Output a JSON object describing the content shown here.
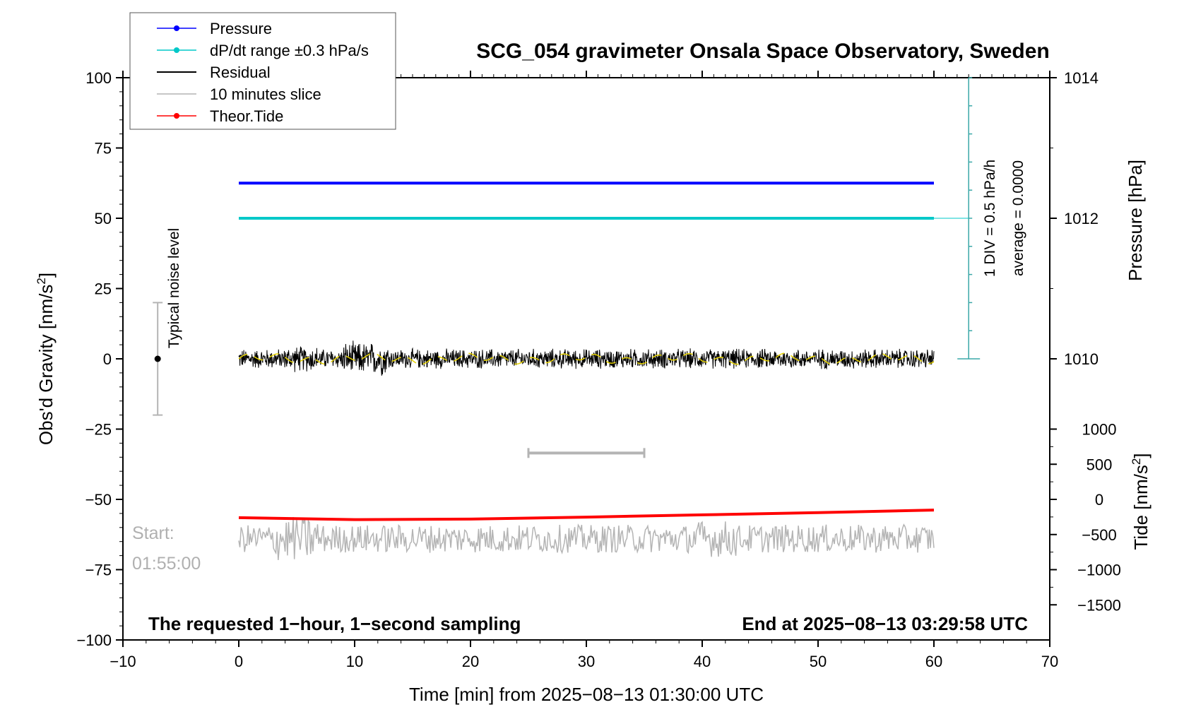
{
  "chart_data": {
    "type": "line",
    "title": "SCG_054 gravimeter Onsala Space Observatory, Sweden",
    "xlabel": "Time [min] from 2025−08−13 01:30:00 UTC",
    "ylabel_main": "Obs'd Gravity [nm/s",
    "ylabel_main_sup": "2",
    "ylabel_main_tail": "]",
    "ylabel_pressure": "Pressure [hPa]",
    "ylabel_tide": "Tide [nm/s",
    "ylabel_tide_sup": "2",
    "ylabel_tide_tail": "]",
    "xlim": [
      -10,
      70
    ],
    "ylim": [
      -100,
      100
    ],
    "xticks": [
      -10,
      0,
      10,
      20,
      30,
      40,
      50,
      60,
      70
    ],
    "xtick_labels": [
      "−10",
      "0",
      "10",
      "20",
      "30",
      "40",
      "50",
      "60",
      "70"
    ],
    "yticks": [
      -100,
      -75,
      -50,
      -25,
      0,
      25,
      50,
      75,
      100
    ],
    "ytick_labels": [
      "−100",
      "−75",
      "−50",
      "−25",
      "0",
      "25",
      "50",
      "75",
      "100"
    ],
    "pressure_axis": {
      "ticks": [
        1010,
        1012,
        1014
      ],
      "tick_labels": [
        "1010",
        "1012",
        "1014"
      ],
      "gravity_at_1012": 50,
      "gravity_per_hPa": 25
    },
    "tide_axis": {
      "ticks": [
        -1500,
        -1000,
        -500,
        0,
        500,
        1000
      ],
      "tick_labels": [
        "−1500",
        "−1000",
        "−500",
        "0",
        "500",
        "1000"
      ],
      "gravity_at_0": -50,
      "gravity_per_unit": 0.025
    },
    "legend": {
      "position": "top-left",
      "entries": [
        {
          "name": "Pressure",
          "color": "#0000ff",
          "marker": true
        },
        {
          "name": "dP/dt range ±0.3 hPa/s",
          "color": "#00c8c8",
          "marker": true
        },
        {
          "name": "Residual",
          "color": "#000000",
          "marker": false
        },
        {
          "name": "10 minutes slice",
          "color": "#b4b4b4",
          "marker": false
        },
        {
          "name": "Theor.Tide",
          "color": "#ff0000",
          "marker": true
        }
      ]
    },
    "series": [
      {
        "name": "Pressure",
        "color": "#0000ff",
        "x": [
          0,
          60
        ],
        "y": [
          62.5,
          62.5
        ]
      },
      {
        "name": "dP/dt range ±0.3 hPa/s",
        "color": "#00c8c8",
        "x": [
          0,
          60
        ],
        "y": [
          50,
          50
        ]
      },
      {
        "name": "Residual",
        "color": "#000000",
        "x_range": [
          0,
          60
        ],
        "center": 0,
        "amplitude": 4,
        "peak_amplitude": 9
      },
      {
        "name": "10 minutes slice",
        "color": "#b4b4b4",
        "x_range": [
          0,
          60
        ],
        "center": -64,
        "amplitude": 5
      },
      {
        "name": "Theor.Tide",
        "color": "#ff0000",
        "x": [
          0,
          10,
          20,
          30,
          40,
          50,
          60
        ],
        "y": [
          -56.5,
          -57.2,
          -57.0,
          -56.3,
          -55.5,
          -54.7,
          -53.8
        ]
      }
    ],
    "typical_noise_level": {
      "label": "Typical noise level",
      "x": -7,
      "center": 0,
      "low": -20,
      "high": 20
    },
    "slice_bracket": {
      "x_start": 25,
      "x_end": 35,
      "y": -33.5
    },
    "dpdt_scale": {
      "label": "1 DIV = 0.5 hPa/h",
      "average_label": "average = 0.0000",
      "x": 63,
      "y_bottom": 0,
      "y_top": 100,
      "div": 10
    },
    "annotations": {
      "start_label": "Start:",
      "start_time": "01:55:00",
      "bottom_left": "The requested 1−hour, 1−second sampling",
      "bottom_right": "End at 2025−08−13 03:29:58 UTC"
    },
    "grid": false
  }
}
